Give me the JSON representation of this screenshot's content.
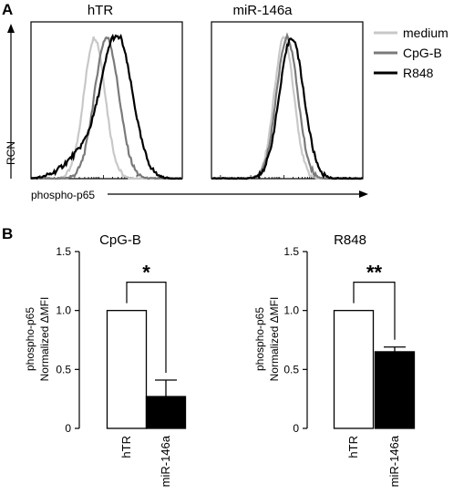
{
  "panel_labels": {
    "a": "A",
    "b": "B"
  },
  "colors": {
    "medium": "#c8c8c8",
    "cpg": "#7a7a7a",
    "r848": "#000000",
    "bar_hTR": "#ffffff",
    "bar_miR": "#000000"
  },
  "flow": {
    "ylabel": "RCN",
    "xlabel": "phospho-p65",
    "legend": [
      "medium",
      "CpG-B",
      "R848"
    ]
  },
  "chart_data": [
    {
      "type": "line",
      "title": "hTR",
      "note": "flow cytometry histogram overlays (relative cell number vs phospho-p65)",
      "series": [
        {
          "name": "medium",
          "peak_x": 0.42,
          "width": 0.07
        },
        {
          "name": "CpG-B",
          "peak_x": 0.5,
          "width": 0.08
        },
        {
          "name": "R848",
          "peak_x": 0.57,
          "width": 0.1,
          "left_shoulder": true
        }
      ]
    },
    {
      "type": "line",
      "title": "miR-146a",
      "series": [
        {
          "name": "medium",
          "peak_x": 0.48,
          "width": 0.065
        },
        {
          "name": "CpG-B",
          "peak_x": 0.5,
          "width": 0.07
        },
        {
          "name": "R848",
          "peak_x": 0.53,
          "width": 0.08
        }
      ]
    },
    {
      "type": "bar",
      "title": "CpG-B",
      "ylabel": [
        "phospho-p65",
        "Normalized ΔMFI"
      ],
      "categories": [
        "hTR",
        "miR-146a"
      ],
      "values": [
        1.0,
        0.27
      ],
      "errors": [
        0,
        0.14
      ],
      "ylim": [
        0,
        1.5
      ],
      "yticks": [
        "0",
        "0.5",
        "1.0",
        "1.5"
      ],
      "significance": "*"
    },
    {
      "type": "bar",
      "title": "R848",
      "ylabel": [
        "phospho-p65",
        "Normalized ΔMFI"
      ],
      "categories": [
        "hTR",
        "miR-146a"
      ],
      "values": [
        1.0,
        0.65
      ],
      "errors": [
        0,
        0.04
      ],
      "ylim": [
        0,
        1.5
      ],
      "yticks": [
        "0",
        "0.5",
        "1.0",
        "1.5"
      ],
      "significance": "**"
    }
  ]
}
